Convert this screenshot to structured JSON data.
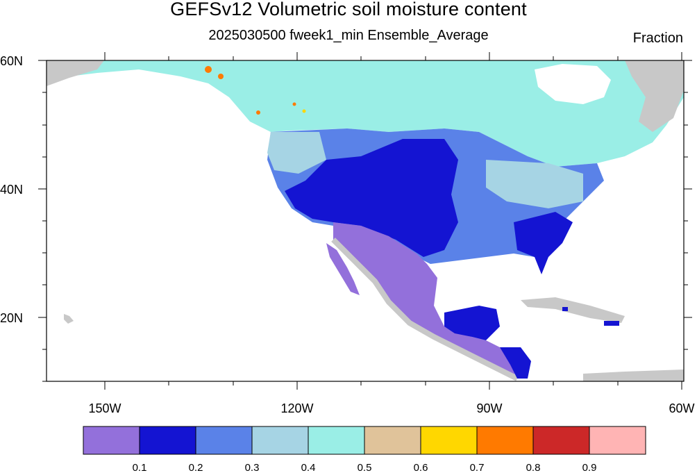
{
  "title": "GEFSv12 Volumetric soil moisture content",
  "subtitle": "2025030500 fweek1_min Ensemble_Average",
  "units": "Fraction",
  "lat_ticks": [
    "60N",
    "40N",
    "20N"
  ],
  "lon_ticks": [
    "150W",
    "120W",
    "90W",
    "60W"
  ],
  "colorbar": {
    "labels": [
      "0.1",
      "0.2",
      "0.3",
      "0.4",
      "0.5",
      "0.6",
      "0.7",
      "0.8",
      "0.9"
    ],
    "colors": [
      "#9370DB",
      "#1414D2",
      "#5A82E8",
      "#A6D4E4",
      "#9AEEE6",
      "#E0C39A",
      "#FFD700",
      "#FF7A00",
      "#CC2828",
      "#FFB4B4"
    ]
  },
  "map_colors": {
    "land_missing": "#C8C8C8",
    "ocean": "#FFFFFF"
  }
}
